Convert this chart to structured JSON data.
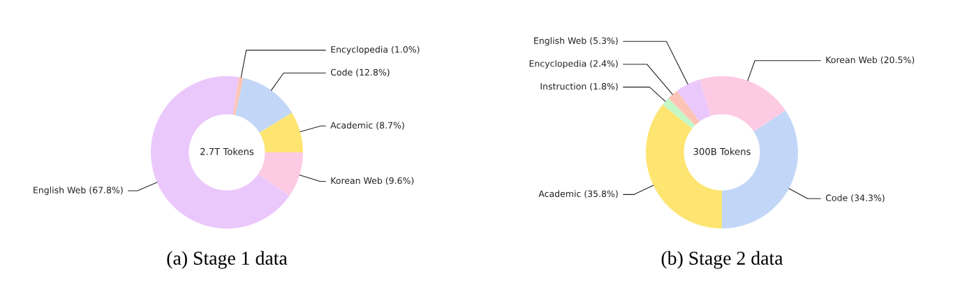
{
  "chart_data": [
    {
      "type": "donut",
      "title": "(a) Stage 1 data",
      "categories": [
        "Academic",
        "Code",
        "Encyclopedia",
        "English Web",
        "Korean Web"
      ],
      "values": [
        8.7,
        12.8,
        1.0,
        67.8,
        9.6
      ],
      "value_labels": [
        "(8.7%)",
        "(12.8%)",
        "(1.0%)",
        "(67.8%)",
        "(9.6%)"
      ],
      "colors": [
        "#fee572",
        "#c2d7f7",
        "#fdc4b6",
        "#ebc8fb",
        "#fdcae3"
      ],
      "annotations": [
        "2.7T Tokens"
      ]
    },
    {
      "type": "donut",
      "title": "(b) Stage 2 data",
      "categories": [
        "Code",
        "Korean Web",
        "English Web",
        "Encyclopedia",
        "Instruction",
        "Academic"
      ],
      "values": [
        34.3,
        20.5,
        5.3,
        2.4,
        1.8,
        35.8
      ],
      "value_labels": [
        "(34.3%)",
        "(20.5%)",
        "(5.3%)",
        "(2.4%)",
        "(1.8%)",
        "(35.8%)"
      ],
      "colors": [
        "#c2d7f7",
        "#fdcae3",
        "#ebc8fb",
        "#fdc4b6",
        "#c3f8c6",
        "#fee572"
      ],
      "annotations": [
        "300B Tokens"
      ]
    }
  ]
}
